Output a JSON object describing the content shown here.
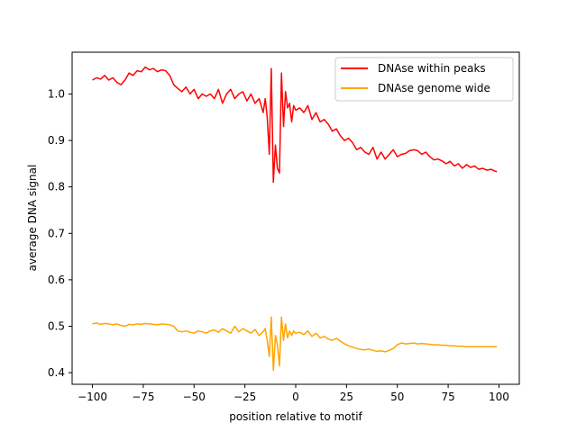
{
  "chart_data": {
    "type": "line",
    "title": "",
    "xlabel": "position relative to motif",
    "ylabel": "average DNA signal",
    "xlim": [
      -110,
      110
    ],
    "ylim": [
      0.375,
      1.09
    ],
    "x_ticks": [
      -100,
      -75,
      -50,
      -25,
      0,
      25,
      50,
      75,
      100
    ],
    "x_tick_labels": [
      "−100",
      "−75",
      "−50",
      "−25",
      "0",
      "25",
      "50",
      "75",
      "100"
    ],
    "y_ticks": [
      0.4,
      0.5,
      0.6,
      0.7,
      0.8,
      0.9,
      1.0
    ],
    "y_tick_labels": [
      "0.4",
      "0.5",
      "0.6",
      "0.7",
      "0.8",
      "0.9",
      "1.0"
    ],
    "grid": false,
    "legend_position": "top-right",
    "series": [
      {
        "name": "DNAse within peaks",
        "color": "#ff0000",
        "x": [
          -100,
          -98,
          -96,
          -94,
          -92,
          -90,
          -88,
          -86,
          -84,
          -82,
          -80,
          -78,
          -76,
          -74,
          -72,
          -70,
          -68,
          -66,
          -64,
          -62,
          -60,
          -58,
          -56,
          -54,
          -52,
          -50,
          -48,
          -46,
          -44,
          -42,
          -40,
          -38,
          -36,
          -34,
          -32,
          -30,
          -28,
          -26,
          -24,
          -22,
          -20,
          -18,
          -16,
          -15,
          -14,
          -13,
          -12,
          -11,
          -10,
          -9,
          -8,
          -7,
          -6,
          -5,
          -4,
          -3,
          -2,
          -1,
          0,
          2,
          4,
          6,
          8,
          10,
          12,
          14,
          16,
          18,
          20,
          22,
          24,
          26,
          28,
          30,
          32,
          34,
          36,
          38,
          40,
          42,
          44,
          46,
          48,
          50,
          52,
          54,
          56,
          58,
          60,
          62,
          64,
          66,
          68,
          70,
          72,
          74,
          76,
          78,
          80,
          82,
          84,
          86,
          88,
          90,
          92,
          94,
          96,
          98,
          99
        ],
        "values": [
          1.03,
          1.035,
          1.032,
          1.04,
          1.03,
          1.035,
          1.025,
          1.02,
          1.03,
          1.045,
          1.04,
          1.05,
          1.048,
          1.058,
          1.052,
          1.055,
          1.048,
          1.052,
          1.05,
          1.04,
          1.02,
          1.012,
          1.005,
          1.015,
          1.0,
          1.01,
          0.99,
          1.0,
          0.995,
          1.0,
          0.99,
          1.01,
          0.98,
          1.0,
          1.01,
          0.99,
          1.0,
          1.005,
          0.985,
          1.0,
          0.98,
          0.99,
          0.96,
          0.99,
          0.95,
          0.87,
          1.055,
          0.81,
          0.89,
          0.84,
          0.83,
          1.045,
          0.93,
          1.005,
          0.97,
          0.98,
          0.94,
          0.975,
          0.965,
          0.97,
          0.96,
          0.975,
          0.945,
          0.96,
          0.94,
          0.945,
          0.935,
          0.92,
          0.925,
          0.91,
          0.9,
          0.905,
          0.895,
          0.88,
          0.885,
          0.875,
          0.87,
          0.885,
          0.86,
          0.875,
          0.86,
          0.87,
          0.88,
          0.865,
          0.87,
          0.872,
          0.878,
          0.88,
          0.878,
          0.87,
          0.875,
          0.865,
          0.858,
          0.86,
          0.856,
          0.85,
          0.855,
          0.845,
          0.85,
          0.84,
          0.848,
          0.842,
          0.845,
          0.838,
          0.84,
          0.836,
          0.838,
          0.834,
          0.833
        ]
      },
      {
        "name": "DNAse genome wide",
        "color": "#ffa500",
        "x": [
          -100,
          -98,
          -96,
          -94,
          -92,
          -90,
          -88,
          -86,
          -84,
          -82,
          -80,
          -78,
          -76,
          -74,
          -72,
          -70,
          -68,
          -66,
          -64,
          -62,
          -60,
          -58,
          -56,
          -54,
          -52,
          -50,
          -48,
          -46,
          -44,
          -42,
          -40,
          -38,
          -36,
          -34,
          -32,
          -30,
          -28,
          -26,
          -24,
          -22,
          -20,
          -18,
          -16,
          -15,
          -14,
          -13,
          -12,
          -11,
          -10,
          -9,
          -8,
          -7,
          -6,
          -5,
          -4,
          -3,
          -2,
          -1,
          0,
          2,
          4,
          6,
          8,
          10,
          12,
          14,
          16,
          18,
          20,
          22,
          24,
          26,
          28,
          30,
          32,
          34,
          36,
          38,
          40,
          42,
          44,
          46,
          48,
          50,
          52,
          54,
          56,
          58,
          60,
          62,
          64,
          66,
          68,
          70,
          72,
          74,
          76,
          78,
          80,
          82,
          84,
          86,
          88,
          90,
          92,
          94,
          96,
          98,
          99
        ],
        "values": [
          0.505,
          0.507,
          0.504,
          0.506,
          0.505,
          0.503,
          0.505,
          0.502,
          0.5,
          0.504,
          0.503,
          0.505,
          0.504,
          0.506,
          0.505,
          0.504,
          0.503,
          0.505,
          0.504,
          0.503,
          0.5,
          0.49,
          0.488,
          0.49,
          0.487,
          0.485,
          0.49,
          0.488,
          0.485,
          0.49,
          0.492,
          0.487,
          0.495,
          0.49,
          0.485,
          0.5,
          0.488,
          0.495,
          0.49,
          0.485,
          0.493,
          0.48,
          0.488,
          0.495,
          0.47,
          0.435,
          0.52,
          0.405,
          0.48,
          0.46,
          0.415,
          0.52,
          0.47,
          0.505,
          0.475,
          0.49,
          0.48,
          0.49,
          0.485,
          0.487,
          0.482,
          0.49,
          0.478,
          0.485,
          0.475,
          0.478,
          0.472,
          0.47,
          0.474,
          0.468,
          0.462,
          0.458,
          0.455,
          0.452,
          0.45,
          0.449,
          0.451,
          0.448,
          0.446,
          0.447,
          0.445,
          0.448,
          0.452,
          0.46,
          0.464,
          0.462,
          0.463,
          0.464,
          0.462,
          0.463,
          0.462,
          0.461,
          0.46,
          0.46,
          0.459,
          0.459,
          0.458,
          0.458,
          0.457,
          0.457,
          0.456,
          0.456,
          0.456,
          0.456,
          0.456,
          0.456,
          0.456,
          0.456,
          0.456
        ]
      }
    ]
  }
}
